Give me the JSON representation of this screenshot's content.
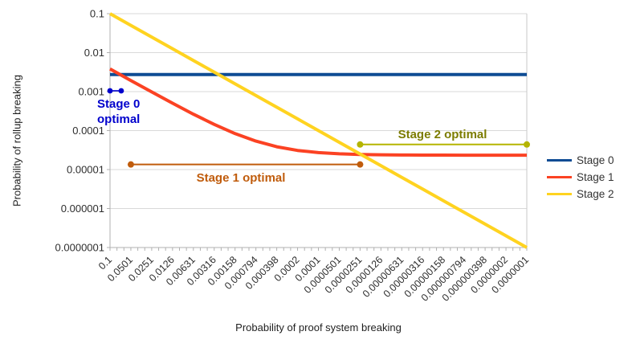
{
  "chart_data": {
    "type": "line",
    "title": "",
    "xlabel": "Probability of proof system breaking",
    "ylabel": "Probability of rollup breaking",
    "x_scale": "log",
    "y_scale": "log",
    "x_range": [
      0.1,
      1e-07
    ],
    "y_range": [
      0.1,
      1e-07
    ],
    "grid": "horizontal-only",
    "legend_position": "right",
    "x": [
      0.1,
      0.0501,
      0.0251,
      0.0126,
      0.00631,
      0.00316,
      0.00158,
      0.000794,
      0.000398,
      0.0002,
      0.0001,
      5.01e-05,
      2.51e-05,
      1.26e-05,
      6.31e-06,
      3.16e-06,
      1.58e-06,
      7.94e-07,
      3.98e-07,
      2e-07,
      1e-07
    ],
    "x_ticks": [
      "0.1",
      "0.0501",
      "0.0251",
      "0.0126",
      "0.00631",
      "0.00316",
      "0.00158",
      "0.000794",
      "0.000398",
      "0.0002",
      "0.0001",
      "0.0000501",
      "0.0000251",
      "0.0000126",
      "0.00000631",
      "0.00000316",
      "0.00000158",
      "0.000000794",
      "0.000000398",
      "0.0000002",
      "0.0000001"
    ],
    "y_ticks": [
      "0.1",
      "0.01",
      "0.001",
      "0.0001",
      "0.00001",
      "0.000001",
      "0.0000001"
    ],
    "series": [
      {
        "name": "Stage 0",
        "color": "#0e4c94",
        "values": [
          0.00273,
          0.00273,
          0.00273,
          0.00273,
          0.00273,
          0.00273,
          0.00273,
          0.00273,
          0.00273,
          0.00273,
          0.00273,
          0.00273,
          0.00273,
          0.00273,
          0.00273,
          0.00273,
          0.00273,
          0.00273,
          0.00273,
          0.00273,
          0.00273
        ]
      },
      {
        "name": "Stage 1",
        "color": "#fb4223",
        "values": [
          0.00383,
          0.00193,
          0.00098,
          0.000504,
          0.000264,
          0.000144,
          8.36e-05,
          5.37e-05,
          3.86e-05,
          3.1e-05,
          2.72e-05,
          2.53e-05,
          2.44e-05,
          2.39e-05,
          2.36e-05,
          2.35e-05,
          2.35e-05,
          2.34e-05,
          2.34e-05,
          2.34e-05,
          2.34e-05
        ]
      },
      {
        "name": "Stage 2",
        "color": "#ffd320",
        "values": [
          0.1,
          0.0501,
          0.0251,
          0.0126,
          0.00631,
          0.00316,
          0.00158,
          0.000794,
          0.000398,
          0.0002,
          0.0001,
          5.01e-05,
          2.51e-05,
          1.26e-05,
          6.31e-06,
          3.16e-06,
          1.58e-06,
          7.94e-07,
          3.98e-07,
          2e-07,
          1e-07
        ]
      }
    ],
    "annotations": [
      {
        "label": "Stage 0 optimal",
        "label_lines": [
          "Stage 0",
          "optimal"
        ],
        "line_color": "#0000cc",
        "text_color": "#0000cc",
        "x_from": 0.1,
        "x_to": 0.069,
        "y": 0.00105
      },
      {
        "label": "Stage 1 optimal",
        "line_color": "#c05c0c",
        "text_color": "#c05c0c",
        "x_from": 0.0501,
        "x_to": 2.51e-05,
        "y": 1.35e-05
      },
      {
        "label": "Stage 2 optimal",
        "line_color": "#b5b500",
        "text_color": "#7c7c00",
        "x_from": 2.51e-05,
        "x_to": 1e-07,
        "y": 4.4e-05
      }
    ]
  }
}
